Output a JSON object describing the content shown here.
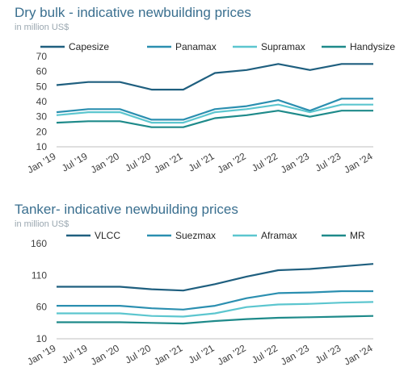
{
  "chart_data": [
    {
      "type": "line",
      "title": "Dry bulk - indicative newbuilding prices",
      "subtitle": "in million US$",
      "x": [
        "Jan '19",
        "Jul '19",
        "Jan '20",
        "Jul '20",
        "Jan '21",
        "Jul '21",
        "Jan '22",
        "Jul '22",
        "Jan '23",
        "Jul '23",
        "Jan '24"
      ],
      "ylim": [
        10,
        70
      ],
      "yticks": [
        10,
        20,
        30,
        40,
        50,
        60,
        70
      ],
      "grid": false,
      "legend_position": "top",
      "series": [
        {
          "name": "Capesize",
          "color": "#1f5f7f",
          "values": [
            51,
            53,
            53,
            48,
            48,
            59,
            61,
            65,
            61,
            65,
            65
          ]
        },
        {
          "name": "Panamax",
          "color": "#2b8fb0",
          "values": [
            33,
            35,
            35,
            28,
            28,
            35,
            37,
            41,
            34,
            42,
            42
          ]
        },
        {
          "name": "Supramax",
          "color": "#5cc6cf",
          "values": [
            31,
            33,
            33,
            26,
            26,
            33,
            35,
            38,
            33,
            38,
            38
          ]
        },
        {
          "name": "Handysize",
          "color": "#1e8a8a",
          "values": [
            26,
            27,
            27,
            23,
            23,
            29,
            31,
            34,
            30,
            34,
            34
          ]
        }
      ]
    },
    {
      "type": "line",
      "title": "Tanker- indicative newbuilding prices",
      "subtitle": "in million US$",
      "x": [
        "Jan '19",
        "Jul '19",
        "Jan '20",
        "Jul '20",
        "Jan '21",
        "Jul '21",
        "Jan '22",
        "Jul '22",
        "Jan '23",
        "Jul '23",
        "Jan '24"
      ],
      "ylim": [
        10,
        160
      ],
      "yticks": [
        10,
        60,
        110,
        160
      ],
      "grid": false,
      "legend_position": "top",
      "series": [
        {
          "name": "VLCC",
          "color": "#1f5f7f",
          "values": [
            92,
            92,
            92,
            88,
            86,
            96,
            108,
            118,
            120,
            124,
            128
          ]
        },
        {
          "name": "Suezmax",
          "color": "#2b8fb0",
          "values": [
            62,
            62,
            62,
            58,
            56,
            62,
            74,
            82,
            83,
            85,
            85
          ]
        },
        {
          "name": "Aframax",
          "color": "#5cc6cf",
          "values": [
            50,
            50,
            50,
            46,
            45,
            50,
            60,
            64,
            65,
            67,
            68
          ]
        },
        {
          "name": "MR",
          "color": "#1e8a8a",
          "values": [
            36,
            36,
            36,
            35,
            34,
            38,
            41,
            43,
            44,
            45,
            46
          ]
        }
      ]
    }
  ]
}
